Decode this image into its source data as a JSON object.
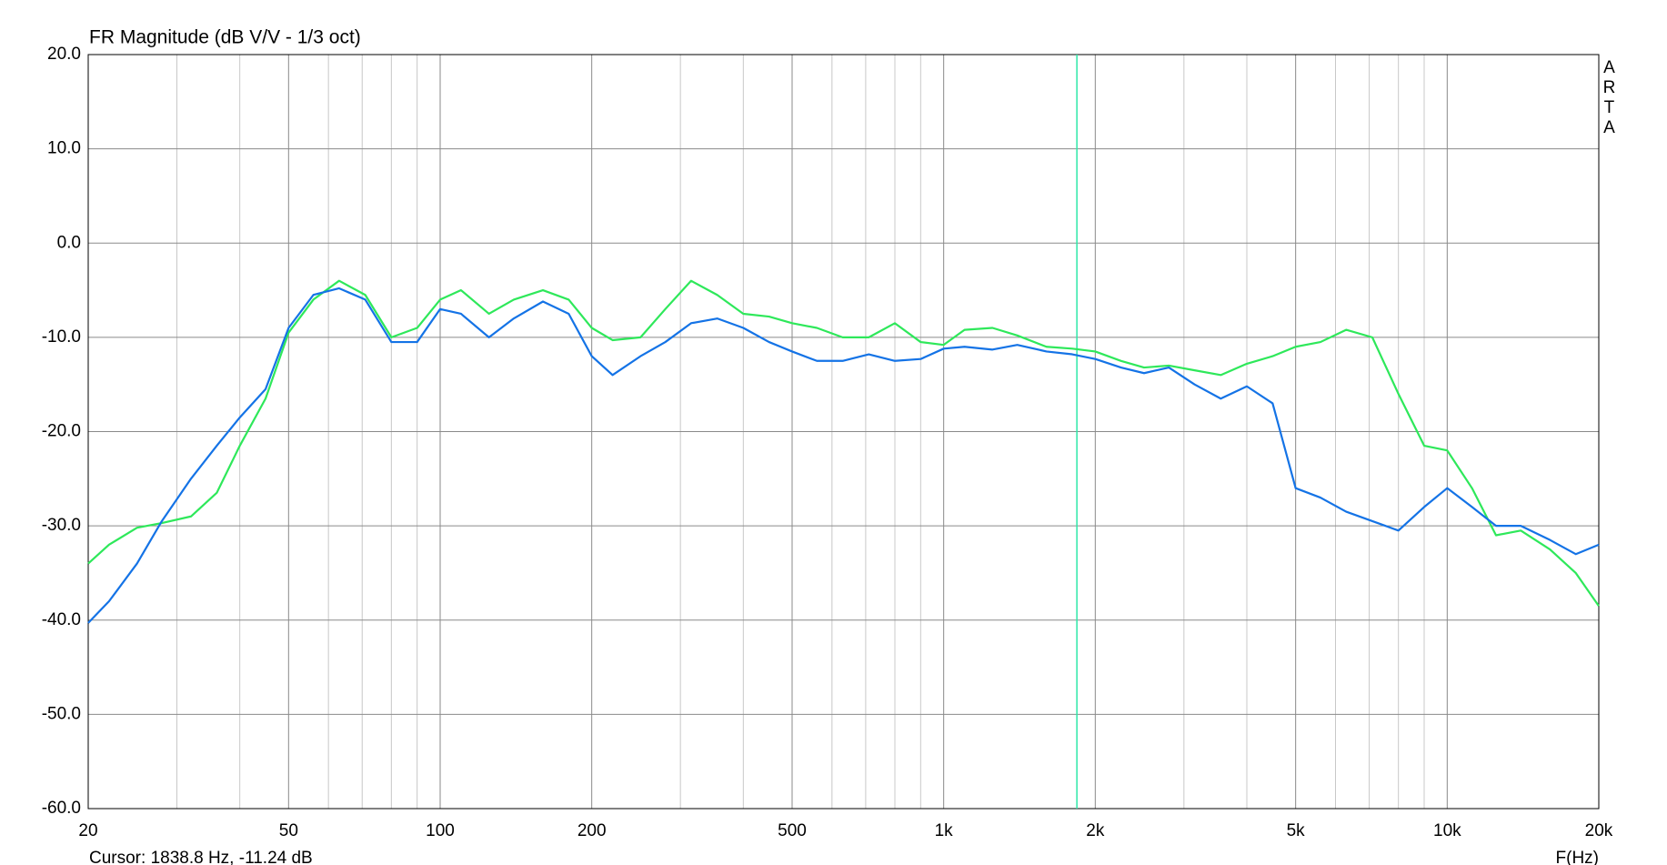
{
  "chart_data": {
    "type": "line",
    "title": "FR Magnitude (dB V/V - 1/3 oct)",
    "x_label": "F(Hz)",
    "brand": "ARTA",
    "cursor": {
      "label": "Cursor: 1838.8 Hz, -11.24 dB",
      "x": 1838.8,
      "color": "#2ee8a8"
    },
    "x_scale": "log",
    "grid": true,
    "xlim": [
      20,
      20000
    ],
    "ylim": [
      -60,
      20
    ],
    "xticks": [
      20,
      50,
      100,
      200,
      500,
      {
        "value": 1000,
        "label": "1k"
      },
      {
        "value": 2000,
        "label": "2k"
      },
      {
        "value": 5000,
        "label": "5k"
      },
      {
        "value": 10000,
        "label": "10k"
      },
      {
        "value": 20000,
        "label": "20k"
      }
    ],
    "xminorticks": [
      30,
      40,
      60,
      70,
      80,
      90,
      300,
      400,
      600,
      700,
      800,
      900,
      3000,
      4000,
      6000,
      7000,
      8000,
      9000
    ],
    "yticks": [
      {
        "value": -60,
        "label": "-60.0"
      },
      {
        "value": -50,
        "label": "-50.0"
      },
      {
        "value": -40,
        "label": "-40.0"
      },
      {
        "value": -30,
        "label": "-30.0"
      },
      {
        "value": -20,
        "label": "-20.0"
      },
      {
        "value": -10,
        "label": "-10.0"
      },
      {
        "value": 0,
        "label": "0.0"
      },
      {
        "value": 10,
        "label": "10.0"
      },
      {
        "value": 20,
        "label": "20.0"
      }
    ],
    "x": [
      20,
      22,
      25,
      28,
      32,
      36,
      40,
      45,
      50,
      56,
      63,
      71,
      80,
      90,
      100,
      110,
      125,
      140,
      160,
      180,
      200,
      220,
      250,
      280,
      315,
      355,
      400,
      450,
      500,
      560,
      630,
      710,
      800,
      900,
      1000,
      1100,
      1250,
      1400,
      1600,
      1800,
      2000,
      2250,
      2500,
      2800,
      3150,
      3550,
      4000,
      4500,
      5000,
      5600,
      6300,
      7100,
      8000,
      9000,
      10000,
      11200,
      12500,
      14000,
      16000,
      18000,
      20000
    ],
    "series": [
      {
        "color": "#2ee85a",
        "values": [
          -34,
          -32,
          -30.2,
          -29.7,
          -29,
          -26.5,
          -21.5,
          -16.5,
          -9.5,
          -6,
          -4,
          -5.5,
          -10,
          -9,
          -6,
          -5,
          -7.5,
          -6,
          -5,
          -6,
          -9,
          -10.3,
          -10,
          -7,
          -4,
          -5.5,
          -7.5,
          -7.8,
          -8.5,
          -9,
          -10,
          -10,
          -8.5,
          -10.5,
          -10.8,
          -9.2,
          -9,
          -9.8,
          -11,
          -11.2,
          -11.5,
          -12.5,
          -13.2,
          -13,
          -13.5,
          -14,
          -12.8,
          -12,
          -11,
          -10.5,
          -9.2,
          -10,
          -16,
          -21.5,
          -22,
          -26,
          -31,
          -30.5,
          -32.5,
          -35,
          -38.5
        ]
      },
      {
        "color": "#1473e6",
        "values": [
          -40.3,
          -38,
          -34,
          -29.5,
          -25,
          -21.5,
          -18.5,
          -15.5,
          -9,
          -5.5,
          -4.8,
          -6,
          -10.5,
          -10.5,
          -7,
          -7.5,
          -10,
          -8,
          -6.2,
          -7.5,
          -12,
          -14,
          -12,
          -10.5,
          -8.5,
          -8,
          -9,
          -10.5,
          -11.5,
          -12.5,
          -12.5,
          -11.8,
          -12.5,
          -12.3,
          -11.2,
          -11,
          -11.3,
          -10.8,
          -11.5,
          -11.8,
          -12.3,
          -13.2,
          -13.8,
          -13.2,
          -15,
          -16.5,
          -15.2,
          -17,
          -26,
          -27,
          -28.5,
          -29.5,
          -30.5,
          -28,
          -26,
          -28,
          -30,
          -30,
          -31.5,
          -33,
          -32
        ]
      }
    ]
  }
}
